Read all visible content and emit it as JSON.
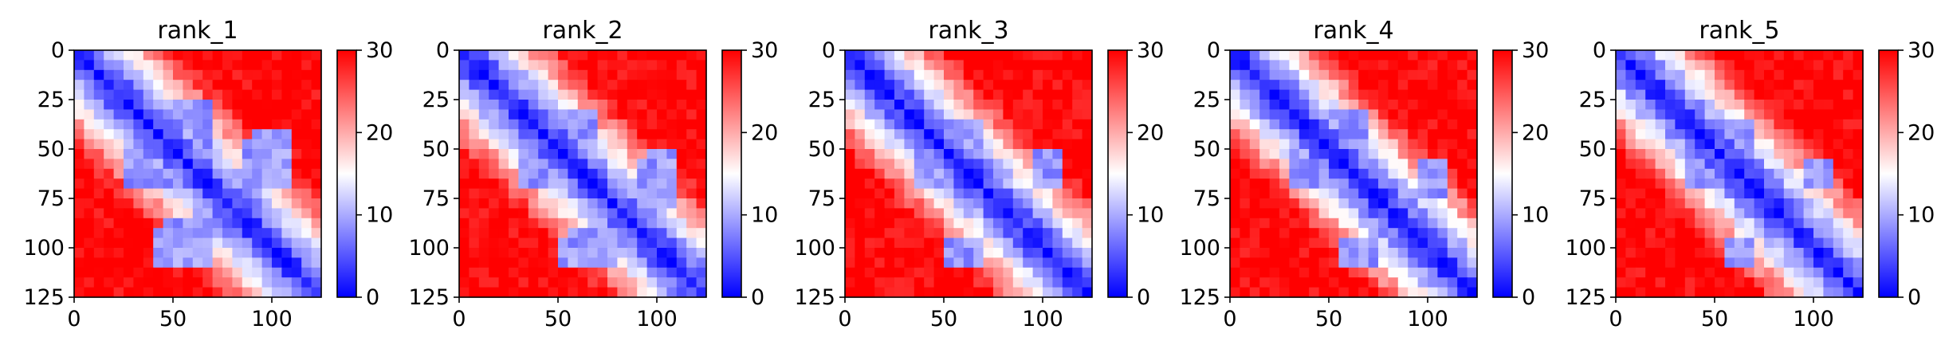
{
  "chart_data": [
    {
      "type": "heatmap",
      "title": "rank_1",
      "xlim": [
        0,
        125
      ],
      "ylim": [
        125,
        0
      ],
      "xticks": [
        0,
        50,
        100
      ],
      "yticks": [
        0,
        25,
        50,
        75,
        100,
        125
      ],
      "colorbar": {
        "min": 0,
        "max": 30,
        "ticks": [
          0,
          10,
          20,
          30
        ],
        "colormap": [
          "#0000ff",
          "#ffffff",
          "#ff0000"
        ]
      },
      "diagonal_feature": "low values (blue) along the main diagonal",
      "low_value_regions": [
        {
          "rows": [
            40,
            70
          ],
          "cols": [
            25,
            50
          ]
        },
        {
          "rows": [
            40,
            70
          ],
          "cols": [
            90,
            110
          ]
        },
        {
          "rows": [
            85,
            110
          ],
          "cols": [
            45,
            70
          ]
        }
      ]
    },
    {
      "type": "heatmap",
      "title": "rank_2",
      "xlim": [
        0,
        125
      ],
      "ylim": [
        125,
        0
      ],
      "xticks": [
        0,
        50,
        100
      ],
      "yticks": [
        0,
        25,
        50,
        75,
        100,
        125
      ],
      "colorbar": {
        "min": 0,
        "max": 30,
        "ticks": [
          0,
          10,
          20,
          30
        ],
        "colormap": [
          "#0000ff",
          "#ffffff",
          "#ff0000"
        ]
      },
      "diagonal_feature": "low values (blue) along the main diagonal",
      "low_value_regions": [
        {
          "rows": [
            50,
            70
          ],
          "cols": [
            30,
            50
          ]
        },
        {
          "rows": [
            55,
            70
          ],
          "cols": [
            90,
            110
          ]
        },
        {
          "rows": [
            95,
            110
          ],
          "cols": [
            50,
            80
          ]
        }
      ]
    },
    {
      "type": "heatmap",
      "title": "rank_3",
      "xlim": [
        0,
        125
      ],
      "ylim": [
        125,
        0
      ],
      "xticks": [
        0,
        50,
        100
      ],
      "yticks": [
        0,
        25,
        50,
        75,
        100,
        125
      ],
      "colorbar": {
        "min": 0,
        "max": 30,
        "ticks": [
          0,
          10,
          20,
          30
        ],
        "colormap": [
          "#0000ff",
          "#ffffff",
          "#ff0000"
        ]
      },
      "diagonal_feature": "low values (blue) along the main diagonal",
      "low_value_regions": [
        {
          "rows": [
            50,
            70
          ],
          "cols": [
            35,
            50
          ]
        },
        {
          "rows": [
            95,
            110
          ],
          "cols": [
            50,
            70
          ]
        }
      ]
    },
    {
      "type": "heatmap",
      "title": "rank_4",
      "xlim": [
        0,
        125
      ],
      "ylim": [
        125,
        0
      ],
      "xticks": [
        0,
        50,
        100
      ],
      "yticks": [
        0,
        25,
        50,
        75,
        100,
        125
      ],
      "colorbar": {
        "min": 0,
        "max": 30,
        "ticks": [
          0,
          10,
          20,
          30
        ],
        "colormap": [
          "#0000ff",
          "#ffffff",
          "#ff0000"
        ]
      },
      "diagonal_feature": "low values (blue) along the main diagonal",
      "low_value_regions": [
        {
          "rows": [
            50,
            70
          ],
          "cols": [
            30,
            50
          ]
        },
        {
          "rows": [
            95,
            110
          ],
          "cols": [
            55,
            75
          ]
        }
      ]
    },
    {
      "type": "heatmap",
      "title": "rank_5",
      "xlim": [
        0,
        125
      ],
      "ylim": [
        125,
        0
      ],
      "xticks": [
        0,
        50,
        100
      ],
      "yticks": [
        0,
        25,
        50,
        75,
        100,
        125
      ],
      "colorbar": {
        "min": 0,
        "max": 30,
        "ticks": [
          0,
          10,
          20,
          30
        ],
        "colormap": [
          "#0000ff",
          "#ffffff",
          "#ff0000"
        ]
      },
      "diagonal_feature": "low values (blue) along the main diagonal",
      "low_value_regions": [
        {
          "rows": [
            50,
            70
          ],
          "cols": [
            35,
            50
          ]
        },
        {
          "rows": [
            95,
            110
          ],
          "cols": [
            55,
            70
          ]
        }
      ]
    }
  ]
}
